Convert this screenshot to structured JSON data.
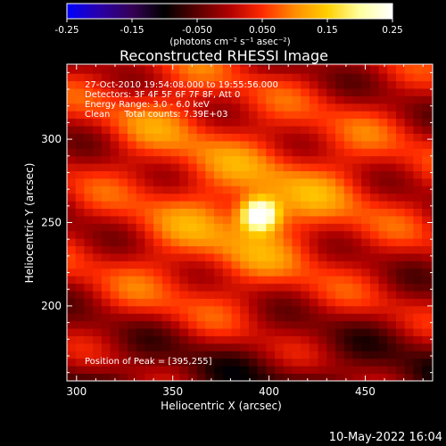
{
  "chart_data": {
    "type": "heatmap",
    "title": "Reconstructed RHESSI Image",
    "colorbar": {
      "min": -0.25,
      "max": 0.25,
      "ticks": [
        "-0.25",
        "-0.15",
        "-0.050",
        "0.050",
        "0.15",
        "0.25"
      ],
      "unit_label": "(photons cm⁻² s⁻¹ asec⁻²)",
      "colormap": [
        "#0000ff",
        "#2a00a8",
        "#350055",
        "#000000",
        "#5a0000",
        "#b00000",
        "#ff2a00",
        "#ff8c00",
        "#ffd000",
        "#ffffa0",
        "#ffffff"
      ]
    },
    "xlabel": "Heliocentric X (arcsec)",
    "ylabel": "Heliocentric Y (arcsec)",
    "xlim": [
      295,
      485
    ],
    "ylim": [
      155,
      345
    ],
    "x_ticks": [
      "300",
      "350",
      "400",
      "450"
    ],
    "y_ticks": [
      "200",
      "250",
      "300"
    ],
    "annotations": [
      "27-Oct-2010 19:54:08.000 to 19:55:56.000",
      "Detectors: 3F 4F 5F 6F 7F 8F, Att 0",
      "Energy Range: 3.0 - 6.0 keV",
      "Clean     Total counts: 7.39E+03"
    ],
    "peak_label": "Position of Peak = [395,255]",
    "peak": {
      "x": 395,
      "y": 255
    }
  },
  "footer_timestamp": "10-May-2022 16:04"
}
